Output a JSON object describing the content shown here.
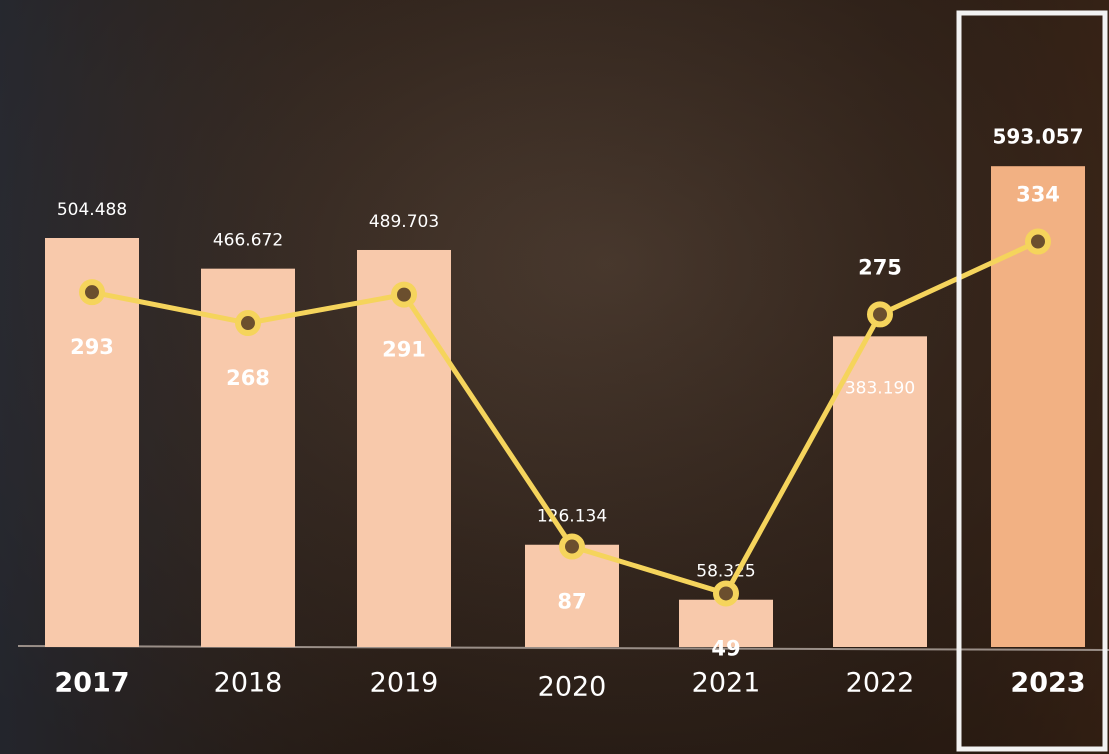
{
  "chart_data": {
    "type": "bar",
    "categories": [
      "2017",
      "2018",
      "2019",
      "2020",
      "2021",
      "2022",
      "2023"
    ],
    "series": [
      {
        "type": "bar",
        "colors": [
          "#f8c9ab",
          "#f8c9ab",
          "#f8c9ab",
          "#f8c9ab",
          "#f8c9ab",
          "#f8c9ab",
          "#f2b183"
        ],
        "values": [
          504488,
          466672,
          489703,
          126134,
          58325,
          383190,
          593057
        ],
        "value_labels": [
          "504.488",
          "466.672",
          "489.703",
          "126.134",
          "58.325",
          "383.190",
          "593.057"
        ]
      },
      {
        "type": "line",
        "color": "#f5d45c",
        "values": [
          293,
          268,
          291,
          87,
          49,
          275,
          334
        ]
      }
    ]
  }
}
